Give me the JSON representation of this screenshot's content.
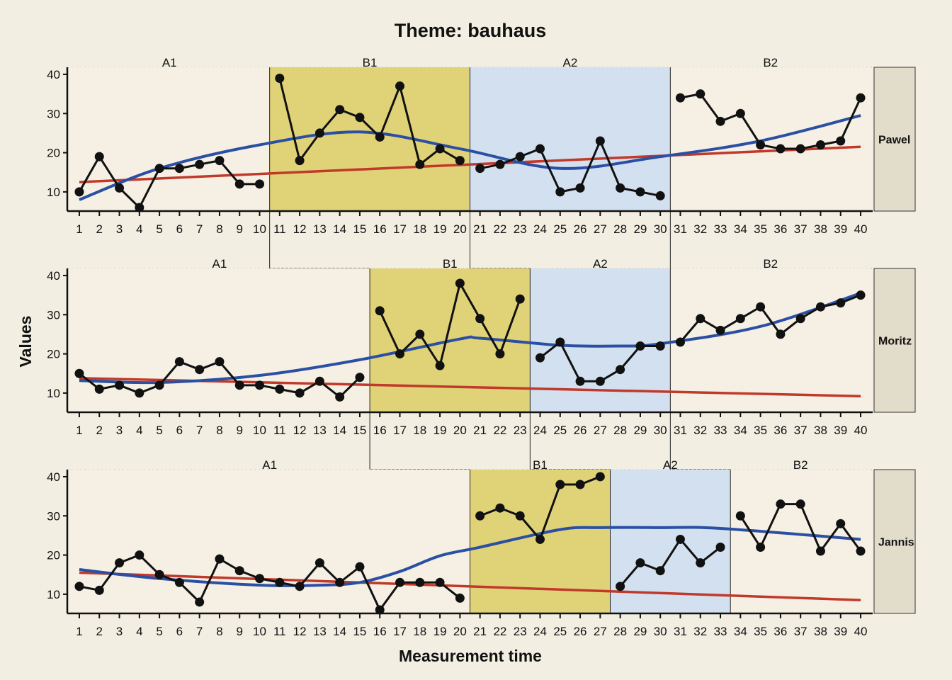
{
  "chart_data": {
    "type": "line",
    "title": "Theme: bauhaus",
    "xlabel": "Measurement time",
    "ylabel": "Values",
    "xlim": [
      0.4,
      40.6
    ],
    "ylim": [
      5.1,
      41.8
    ],
    "yticks": [
      10,
      20,
      30,
      40
    ],
    "xticks": [
      1,
      2,
      3,
      4,
      5,
      6,
      7,
      8,
      9,
      10,
      11,
      12,
      13,
      14,
      15,
      16,
      17,
      18,
      19,
      20,
      21,
      22,
      23,
      24,
      25,
      26,
      27,
      28,
      29,
      30,
      31,
      32,
      33,
      34,
      35,
      36,
      37,
      38,
      39,
      40
    ],
    "colors": {
      "background": "#f2eee2",
      "panel": "#f5f0e3",
      "B1": "#e0d277",
      "A2": "#d3e0ef",
      "strip": "#e2dccb",
      "data": "#111111",
      "loess": "#2a4fa3",
      "linear": "#c0392b"
    },
    "panels": [
      {
        "name": "Pawel",
        "phases": [
          {
            "label": "A1",
            "start": 1,
            "end": 10
          },
          {
            "label": "B1",
            "start": 11,
            "end": 20
          },
          {
            "label": "A2",
            "start": 21,
            "end": 30
          },
          {
            "label": "B2",
            "start": 31,
            "end": 40
          }
        ],
        "values": [
          10,
          19,
          11,
          6,
          16,
          16,
          17,
          18,
          12,
          12,
          39,
          18,
          25,
          31,
          29,
          24,
          37,
          17,
          21,
          18,
          16,
          17,
          19,
          21,
          10,
          11,
          23,
          11,
          10,
          9,
          34,
          35,
          28,
          30,
          22,
          21,
          21,
          22,
          23,
          34
        ],
        "linear_trend": [
          12.5,
          21.5
        ],
        "loess_trend": [
          [
            1,
            8
          ],
          [
            5,
            16
          ],
          [
            10,
            22
          ],
          [
            15,
            25.3
          ],
          [
            20,
            21
          ],
          [
            25,
            16
          ],
          [
            30,
            19
          ],
          [
            35,
            23
          ],
          [
            40,
            29.5
          ]
        ]
      },
      {
        "name": "Moritz",
        "phases": [
          {
            "label": "A1",
            "start": 1,
            "end": 15
          },
          {
            "label": "B1",
            "start": 16,
            "end": 23
          },
          {
            "label": "A2",
            "start": 24,
            "end": 30
          },
          {
            "label": "B2",
            "start": 31,
            "end": 40
          }
        ],
        "values": [
          15,
          11,
          12,
          10,
          12,
          18,
          16,
          18,
          12,
          12,
          11,
          10,
          13,
          9,
          14,
          31,
          20,
          25,
          17,
          38,
          29,
          20,
          34,
          19,
          23,
          13,
          13,
          16,
          22,
          22,
          23,
          29,
          26,
          29,
          32,
          25,
          29,
          32,
          33,
          35
        ],
        "linear_trend": [
          13.8,
          9.2
        ],
        "loess_trend": [
          [
            1,
            13.2
          ],
          [
            5,
            12.7
          ],
          [
            10,
            14.5
          ],
          [
            15,
            18.5
          ],
          [
            20,
            23.8
          ],
          [
            21,
            24
          ],
          [
            25,
            22.2
          ],
          [
            28,
            22
          ],
          [
            30,
            22.6
          ],
          [
            35,
            27
          ],
          [
            40,
            35.5
          ]
        ]
      },
      {
        "name": "Jannis",
        "phases": [
          {
            "label": "A1",
            "start": 1,
            "end": 20
          },
          {
            "label": "B1",
            "start": 21,
            "end": 27
          },
          {
            "label": "A2",
            "start": 28,
            "end": 33
          },
          {
            "label": "B2",
            "start": 34,
            "end": 40
          }
        ],
        "values": [
          12,
          11,
          18,
          20,
          15,
          13,
          8,
          19,
          16,
          14,
          13,
          12,
          18,
          13,
          17,
          6,
          13,
          13,
          13,
          9,
          30,
          32,
          30,
          24,
          38,
          38,
          40,
          12,
          18,
          16,
          24,
          18,
          22,
          30,
          22,
          33,
          33,
          21,
          28,
          21
        ],
        "linear_trend": [
          15.5,
          8.5
        ],
        "loess_trend": [
          [
            1,
            16.3
          ],
          [
            5,
            14
          ],
          [
            10,
            12.3
          ],
          [
            13,
            12.3
          ],
          [
            15,
            13
          ],
          [
            17,
            15.8
          ],
          [
            19,
            19.8
          ],
          [
            21,
            22
          ],
          [
            25,
            26.5
          ],
          [
            27,
            27
          ],
          [
            30,
            27
          ],
          [
            33,
            26.8
          ],
          [
            40,
            24
          ]
        ]
      }
    ]
  }
}
